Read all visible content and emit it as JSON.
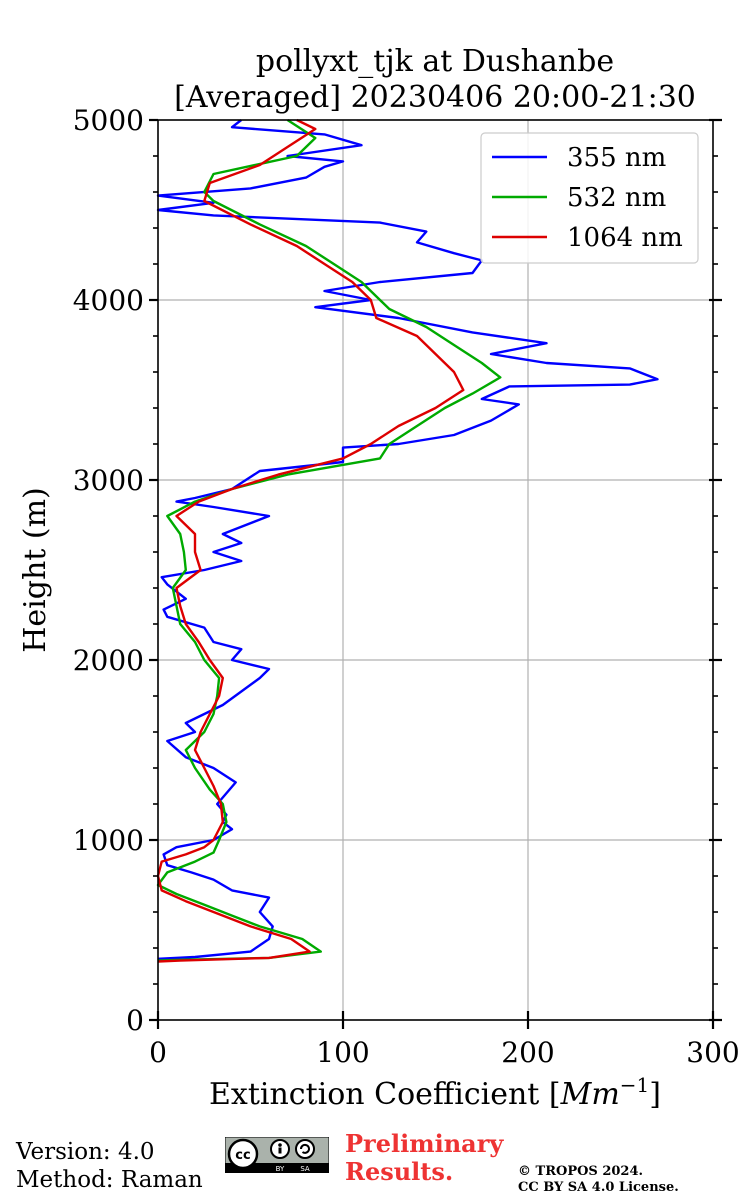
{
  "chart_data": {
    "type": "line",
    "title": [
      "pollyxt_tjk at Dushanbe",
      "[Averaged] 20230406 20:00-21:30"
    ],
    "xlabel": "Extinction Coefficient [",
    "xlabel_unit": "Mm",
    "xlabel_exp": "−1",
    "xlabel_close": "]",
    "ylabel": "Height (m)",
    "xlim": [
      0,
      300
    ],
    "ylim": [
      0,
      5000
    ],
    "xticks": [
      0,
      100,
      200,
      300
    ],
    "yticks": [
      0,
      1000,
      2000,
      3000,
      4000,
      5000
    ],
    "grid": true,
    "legend_position": "top-right",
    "series": [
      {
        "name": "355 nm",
        "color": "#0000ff",
        "points": [
          [
            0,
            340
          ],
          [
            20,
            350
          ],
          [
            50,
            380
          ],
          [
            60,
            450
          ],
          [
            62,
            520
          ],
          [
            55,
            600
          ],
          [
            60,
            680
          ],
          [
            40,
            720
          ],
          [
            30,
            780
          ],
          [
            18,
            820
          ],
          [
            5,
            860
          ],
          [
            3,
            920
          ],
          [
            10,
            960
          ],
          [
            30,
            1000
          ],
          [
            40,
            1060
          ],
          [
            35,
            1100
          ],
          [
            37,
            1140
          ],
          [
            32,
            1200
          ],
          [
            42,
            1320
          ],
          [
            30,
            1400
          ],
          [
            15,
            1460
          ],
          [
            5,
            1550
          ],
          [
            20,
            1600
          ],
          [
            15,
            1650
          ],
          [
            35,
            1750
          ],
          [
            55,
            1900
          ],
          [
            60,
            1950
          ],
          [
            40,
            2000
          ],
          [
            45,
            2060
          ],
          [
            30,
            2100
          ],
          [
            25,
            2180
          ],
          [
            5,
            2240
          ],
          [
            3,
            2280
          ],
          [
            15,
            2340
          ],
          [
            5,
            2420
          ],
          [
            2,
            2460
          ],
          [
            25,
            2500
          ],
          [
            45,
            2550
          ],
          [
            30,
            2600
          ],
          [
            45,
            2650
          ],
          [
            35,
            2700
          ],
          [
            60,
            2800
          ],
          [
            30,
            2850
          ],
          [
            10,
            2880
          ],
          [
            20,
            2900
          ],
          [
            40,
            2950
          ],
          [
            55,
            3050
          ],
          [
            100,
            3100
          ],
          [
            100,
            3180
          ],
          [
            130,
            3200
          ],
          [
            160,
            3250
          ],
          [
            180,
            3330
          ],
          [
            195,
            3420
          ],
          [
            175,
            3450
          ],
          [
            190,
            3520
          ],
          [
            255,
            3530
          ],
          [
            270,
            3560
          ],
          [
            255,
            3620
          ],
          [
            210,
            3650
          ],
          [
            180,
            3700
          ],
          [
            210,
            3760
          ],
          [
            170,
            3820
          ],
          [
            130,
            3900
          ],
          [
            85,
            3960
          ],
          [
            115,
            4000
          ],
          [
            90,
            4050
          ],
          [
            120,
            4100
          ],
          [
            170,
            4150
          ],
          [
            175,
            4220
          ],
          [
            160,
            4260
          ],
          [
            140,
            4320
          ],
          [
            145,
            4380
          ],
          [
            120,
            4430
          ],
          [
            30,
            4470
          ],
          [
            0,
            4500
          ],
          [
            30,
            4540
          ],
          [
            0,
            4580
          ],
          [
            50,
            4620
          ],
          [
            80,
            4680
          ],
          [
            90,
            4740
          ],
          [
            100,
            4770
          ],
          [
            70,
            4800
          ],
          [
            110,
            4860
          ],
          [
            90,
            4920
          ],
          [
            40,
            4960
          ],
          [
            45,
            5000
          ]
        ]
      },
      {
        "name": "532 nm",
        "color": "#00aa00",
        "points": [
          [
            0,
            330
          ],
          [
            15,
            335
          ],
          [
            60,
            345
          ],
          [
            88,
            380
          ],
          [
            78,
            450
          ],
          [
            55,
            520
          ],
          [
            40,
            580
          ],
          [
            25,
            640
          ],
          [
            10,
            700
          ],
          [
            0,
            750
          ],
          [
            5,
            820
          ],
          [
            20,
            880
          ],
          [
            30,
            930
          ],
          [
            33,
            1000
          ],
          [
            37,
            1100
          ],
          [
            35,
            1200
          ],
          [
            28,
            1280
          ],
          [
            20,
            1400
          ],
          [
            15,
            1500
          ],
          [
            25,
            1600
          ],
          [
            30,
            1700
          ],
          [
            32,
            1800
          ],
          [
            33,
            1900
          ],
          [
            25,
            2000
          ],
          [
            20,
            2100
          ],
          [
            12,
            2200
          ],
          [
            10,
            2300
          ],
          [
            8,
            2400
          ],
          [
            15,
            2500
          ],
          [
            14,
            2600
          ],
          [
            12,
            2700
          ],
          [
            5,
            2800
          ],
          [
            20,
            2880
          ],
          [
            40,
            2950
          ],
          [
            70,
            3030
          ],
          [
            120,
            3120
          ],
          [
            125,
            3200
          ],
          [
            140,
            3300
          ],
          [
            155,
            3400
          ],
          [
            170,
            3480
          ],
          [
            185,
            3570
          ],
          [
            175,
            3650
          ],
          [
            160,
            3750
          ],
          [
            145,
            3850
          ],
          [
            125,
            3950
          ],
          [
            120,
            4000
          ],
          [
            110,
            4100
          ],
          [
            95,
            4200
          ],
          [
            80,
            4300
          ],
          [
            55,
            4420
          ],
          [
            30,
            4550
          ],
          [
            25,
            4600
          ],
          [
            30,
            4700
          ],
          [
            75,
            4800
          ],
          [
            85,
            4900
          ],
          [
            70,
            5000
          ]
        ]
      },
      {
        "name": "1064 nm",
        "color": "#dd0000",
        "points": [
          [
            0,
            325
          ],
          [
            12,
            330
          ],
          [
            60,
            345
          ],
          [
            82,
            380
          ],
          [
            72,
            450
          ],
          [
            50,
            520
          ],
          [
            30,
            600
          ],
          [
            15,
            660
          ],
          [
            2,
            720
          ],
          [
            0,
            800
          ],
          [
            2,
            880
          ],
          [
            15,
            920
          ],
          [
            25,
            960
          ],
          [
            30,
            1000
          ],
          [
            35,
            1100
          ],
          [
            34,
            1200
          ],
          [
            30,
            1300
          ],
          [
            25,
            1400
          ],
          [
            20,
            1500
          ],
          [
            23,
            1600
          ],
          [
            28,
            1700
          ],
          [
            33,
            1800
          ],
          [
            35,
            1900
          ],
          [
            28,
            2000
          ],
          [
            22,
            2100
          ],
          [
            15,
            2200
          ],
          [
            12,
            2300
          ],
          [
            10,
            2400
          ],
          [
            23,
            2500
          ],
          [
            20,
            2600
          ],
          [
            20,
            2700
          ],
          [
            10,
            2800
          ],
          [
            22,
            2880
          ],
          [
            40,
            2950
          ],
          [
            65,
            3030
          ],
          [
            100,
            3120
          ],
          [
            115,
            3200
          ],
          [
            130,
            3300
          ],
          [
            150,
            3400
          ],
          [
            165,
            3500
          ],
          [
            160,
            3600
          ],
          [
            150,
            3700
          ],
          [
            140,
            3800
          ],
          [
            118,
            3900
          ],
          [
            115,
            4000
          ],
          [
            105,
            4100
          ],
          [
            90,
            4200
          ],
          [
            75,
            4300
          ],
          [
            50,
            4420
          ],
          [
            25,
            4550
          ],
          [
            28,
            4650
          ],
          [
            55,
            4750
          ],
          [
            70,
            4850
          ],
          [
            85,
            4950
          ],
          [
            75,
            5000
          ]
        ]
      }
    ]
  },
  "footer": {
    "version": "Version: 4.0",
    "method": "Method: Raman",
    "preliminary_line1": "Preliminary",
    "preliminary_line2": "Results.",
    "copyright_line1": "© TROPOS 2024.",
    "copyright_line2": "CC BY SA 4.0 License.",
    "cc_badge_main": "cc",
    "cc_badge_by": "BY",
    "cc_badge_sa": "SA"
  }
}
